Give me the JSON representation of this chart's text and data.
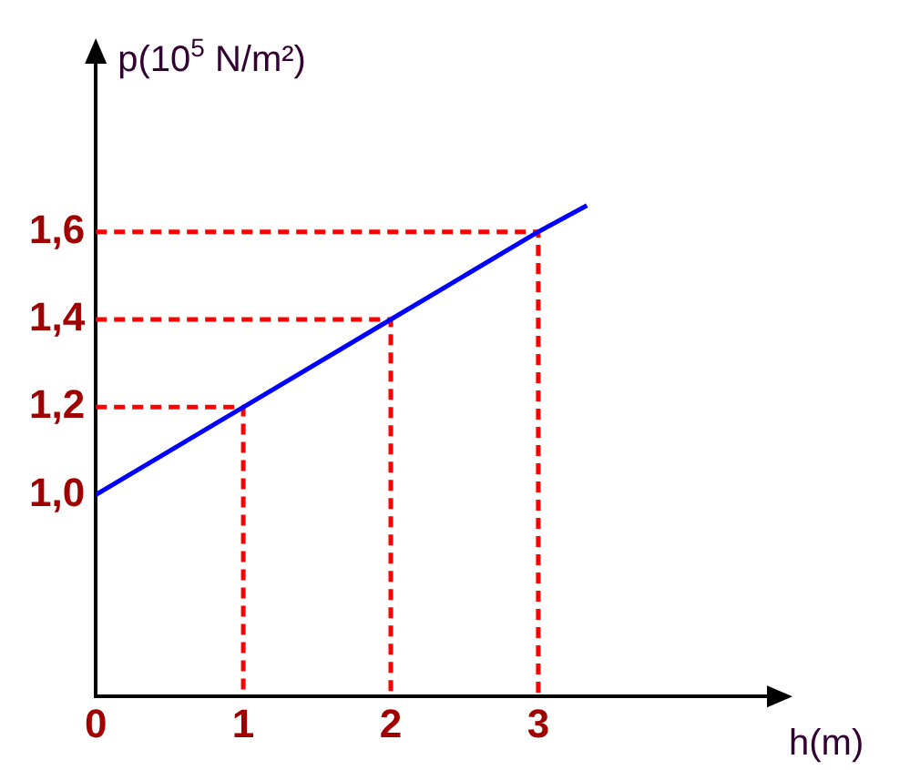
{
  "chart_data": {
    "type": "line",
    "xlabel": "h(m)",
    "ylabel": "p(10$^{5}$ N/m²)",
    "xlim": [
      0,
      4.6
    ],
    "xticks": [
      0,
      1,
      2,
      3
    ],
    "ylim": [
      0.54,
      2.0
    ],
    "yticks": [
      {
        "value": 1,
        "label": "1,0"
      },
      {
        "value": 1.2,
        "label": "1,2"
      },
      {
        "value": 1.4,
        "label": "1,4"
      },
      {
        "value": 1.6,
        "label": "1,6"
      }
    ],
    "grid": false,
    "legend": false,
    "marker": "none",
    "series": [
      {
        "color": "#0000ff",
        "x": [
          0,
          1,
          2,
          3,
          3.33
        ],
        "values": [
          1.0,
          1.2,
          1.4,
          1.6,
          1.66
        ]
      },
      {
        "type": "line",
        "line_style": "dashed",
        "color": "#ff0000",
        "x": [
          0,
          1,
          1
        ],
        "values": [
          1.2,
          1.2,
          0.54
        ]
      },
      {
        "type": "line",
        "line_style": "dashed",
        "color": "#ff0000",
        "x": [
          0,
          2,
          2
        ],
        "values": [
          1.4,
          1.4,
          0.54
        ]
      },
      {
        "type": "line",
        "line_style": "dashed",
        "color": "#ff0000",
        "x": [
          0,
          3,
          3
        ],
        "values": [
          1.6,
          1.6,
          0.54
        ]
      }
    ]
  }
}
